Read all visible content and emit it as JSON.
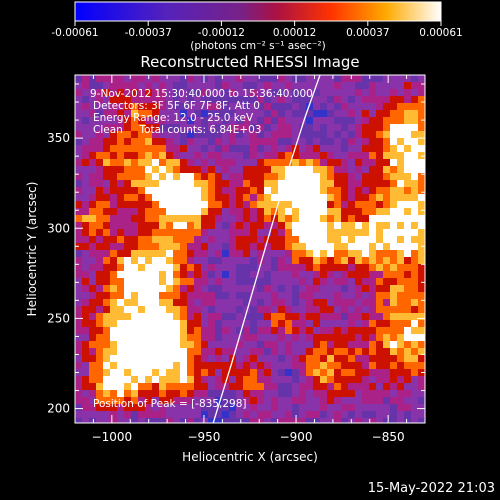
{
  "colorbar": {
    "ticks": [
      "-0.00061",
      "-0.00037",
      "-0.00012",
      "0.00012",
      "0.00037",
      "0.00061"
    ],
    "units": "(photons cm⁻² s⁻¹ asec⁻²)"
  },
  "title": "Reconstructed RHESSI Image",
  "annotations": [
    "9-Nov-2012 15:30:40.000 to 15:36:40.000",
    "Detectors: 3F 5F 6F 7F 8F, Att 0",
    "Energy Range: 12.0 - 25.0 keV",
    "Clean     Total counts: 6.84E+03"
  ],
  "peak_label": "Position of Peak = [-835,298]",
  "timestamp": "15-May-2022 21:03",
  "chart_data": {
    "type": "heatmap",
    "title": "Reconstructed RHESSI Image",
    "xlabel": "Heliocentric X (arcsec)",
    "ylabel": "Heliocentric Y (arcsec)",
    "xlim": [
      -1020,
      -830
    ],
    "ylim": [
      192,
      385
    ],
    "x_ticks": [
      -1000,
      -950,
      -900,
      -850
    ],
    "y_ticks": [
      200,
      250,
      300,
      350
    ],
    "x_tick_labels": [
      "−1000",
      "−950",
      "−900",
      "−850"
    ],
    "y_tick_labels": [
      "200",
      "250",
      "300",
      "350"
    ],
    "colorscale_range": [
      -0.00061,
      0.00061
    ],
    "colormap": [
      "#0000ff",
      "#3333cc",
      "#6633aa",
      "#8833aa",
      "#aa2288",
      "#cc1100",
      "#ff6600",
      "#ffbb33",
      "#ffffff"
    ],
    "limb_curve": {
      "x": [
        -945,
        -935,
        -925,
        -915,
        -905,
        -895,
        -887
      ],
      "y": [
        192,
        225,
        260,
        295,
        330,
        362,
        385
      ]
    },
    "peak_position": [
      -835,
      298
    ]
  }
}
